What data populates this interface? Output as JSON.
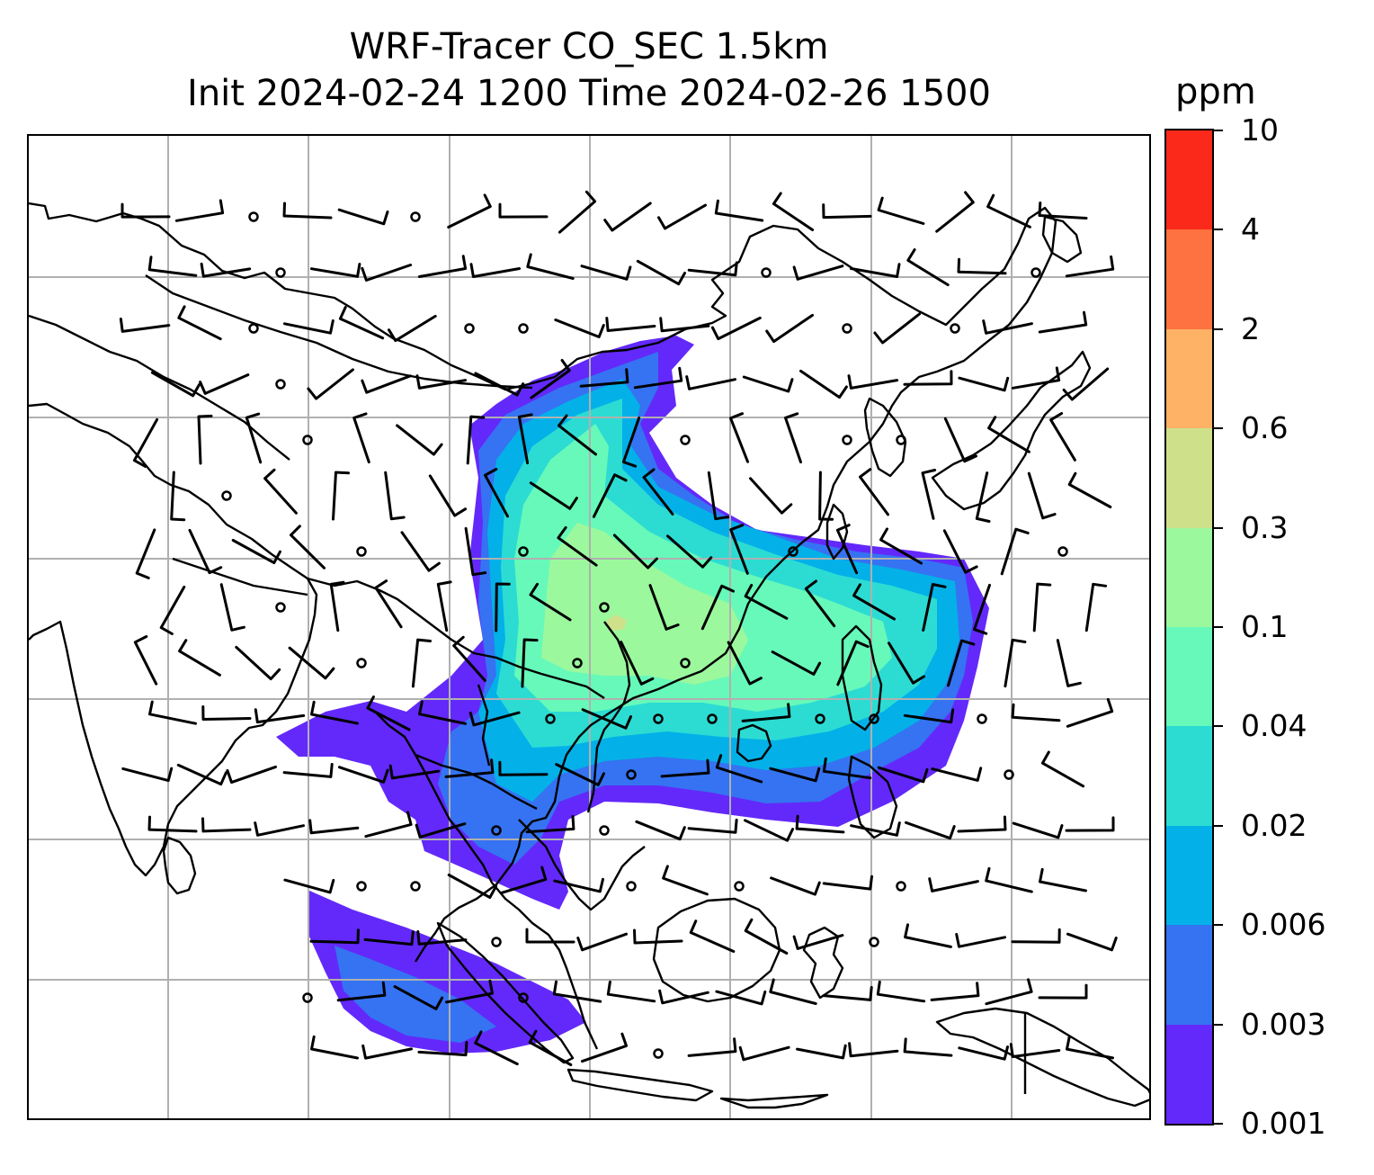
{
  "title": {
    "line1": "WRF-Tracer CO_SEC 1.5km",
    "line2": "Init 2024-02-24 1200 Time 2024-02-26 1500"
  },
  "colorbar": {
    "unit": "ppm",
    "levels": [
      "0.001",
      "0.003",
      "0.006",
      "0.02",
      "0.04",
      "0.1",
      "0.3",
      "0.6",
      "2",
      "4",
      "10"
    ],
    "colors": [
      "#6329fa",
      "#3573f2",
      "#03b1e8",
      "#2cdcd3",
      "#67f9b9",
      "#9cf89d",
      "#cfe08a",
      "#fdb266",
      "#fd7240",
      "#fb291a"
    ]
  },
  "map": {
    "gridlines": true,
    "coastline_color": "#000000",
    "grid_color": "#b0b0b0",
    "wind_barbs": true
  }
}
